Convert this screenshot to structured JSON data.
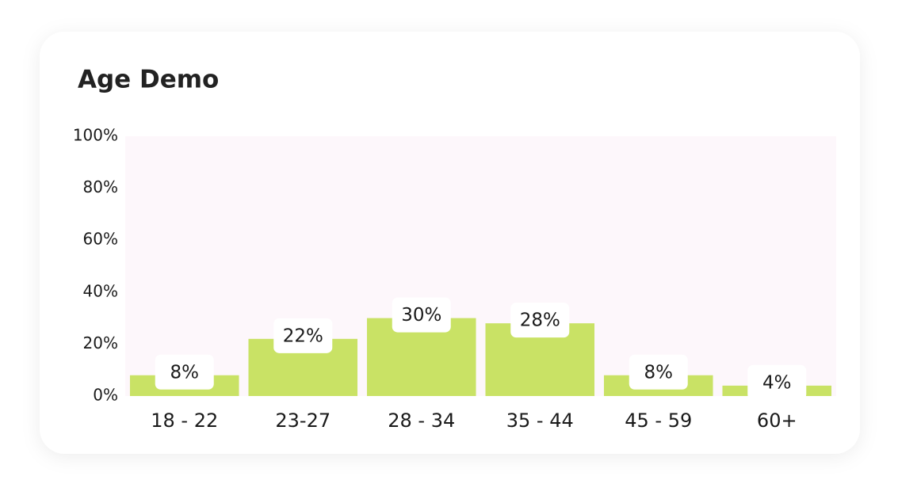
{
  "chart_data": {
    "type": "bar",
    "title": "Age Demo",
    "categories": [
      "18 - 22",
      "23-27",
      "28 - 34",
      "35 - 44",
      "45 - 59",
      "60+"
    ],
    "values": [
      8,
      22,
      30,
      28,
      8,
      4
    ],
    "value_labels": [
      "8%",
      "22%",
      "30%",
      "28%",
      "8%",
      "4%"
    ],
    "color": "#c9e265",
    "ylim": [
      0,
      100
    ],
    "yticks": [
      {
        "value": 0,
        "label": "0%"
      },
      {
        "value": 20,
        "label": "20%"
      },
      {
        "value": 40,
        "label": "40%"
      },
      {
        "value": 60,
        "label": "60%"
      },
      {
        "value": 80,
        "label": "80%"
      },
      {
        "value": 100,
        "label": "100%"
      }
    ],
    "grid": false
  }
}
